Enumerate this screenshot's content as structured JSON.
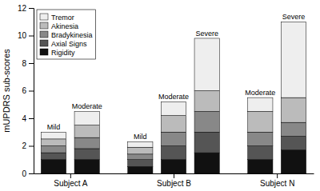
{
  "chart_data": {
    "type": "bar",
    "stacked": true,
    "legend": "upper left",
    "y_label": "mUPDRS sub-scores",
    "groups": [
      {
        "name": "Subject A",
        "categories": [
          "Mild",
          "Moderate"
        ]
      },
      {
        "name": "Subject B",
        "categories": [
          "Mild",
          "Moderate",
          "Severe"
        ]
      },
      {
        "name": "Subject N",
        "categories": [
          "Moderate",
          "Severe"
        ]
      }
    ],
    "series": [
      {
        "name": "Rigidity",
        "color": "#111111",
        "values": [
          1.0,
          1.0,
          0.5,
          1.0,
          1.5,
          1.0,
          1.7
        ]
      },
      {
        "name": "Axial Signs",
        "color": "#555555",
        "values": [
          0.5,
          0.8,
          0.5,
          1.0,
          1.5,
          1.0,
          1.0
        ]
      },
      {
        "name": "Bradykinesia",
        "color": "#888888",
        "values": [
          0.5,
          0.8,
          0.4,
          1.0,
          1.5,
          1.0,
          1.0
        ]
      },
      {
        "name": "Akinesia",
        "color": "#bbbbbb",
        "values": [
          0.5,
          0.9,
          0.5,
          1.2,
          1.5,
          1.5,
          1.8
        ]
      },
      {
        "name": "Tremor",
        "color": "#eeeeee",
        "values": [
          0.5,
          1.0,
          0.4,
          1.0,
          3.8,
          1.0,
          5.5
        ]
      }
    ],
    "ylim": [
      0,
      12
    ],
    "yticks": [
      0,
      2,
      4,
      6,
      8,
      10,
      12
    ]
  }
}
